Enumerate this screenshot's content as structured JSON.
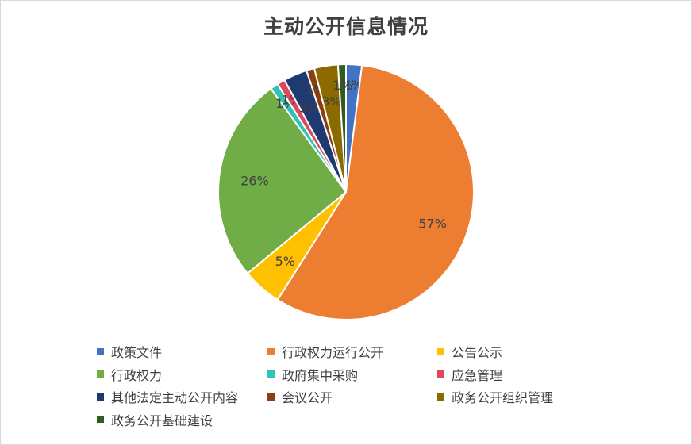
{
  "chart_data": {
    "type": "pie",
    "title": "主动公开信息情况",
    "categories": [
      "政策文件",
      "行政权力运行公开",
      "公告公示",
      "行政权力",
      "政府集中采购",
      "应急管理",
      "其他法定主动公开内容",
      "会议公开",
      "政务公开组织管理",
      "政务公开基础建设"
    ],
    "values": [
      2,
      57,
      5,
      26,
      1,
      1,
      3,
      1,
      3,
      1
    ],
    "data_labels": [
      "2%",
      "57%",
      "5%",
      "26%",
      "1%",
      "1%",
      "3%",
      "1%",
      "3%",
      "1%"
    ],
    "colors": [
      "#4472C4",
      "#ED7D31",
      "#FFC000",
      "#70AD47",
      "#2EC4B6",
      "#E0485E",
      "#1F3A70",
      "#8B3F10",
      "#8B6A00",
      "#2F5D1F"
    ],
    "legend_position": "bottom"
  }
}
